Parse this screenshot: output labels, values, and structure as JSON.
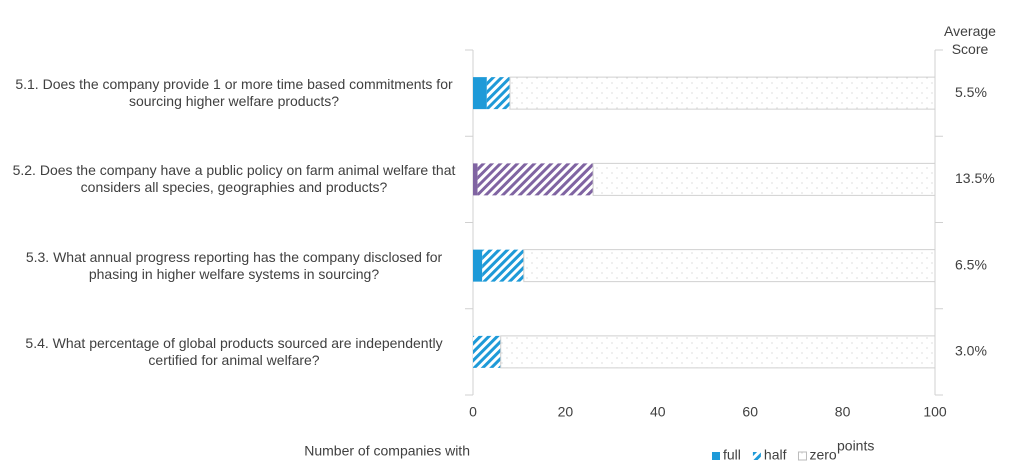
{
  "chart_data": {
    "type": "stacked-barh",
    "categories": [
      "5.1. Does the company provide  1 or more time based commitments for sourcing higher welfare products?",
      "5.2. Does the company have a public policy on farm animal welfare that considers all species, geographies and products?",
      "5.3. What annual progress reporting has the company disclosed for phasing in higher welfare systems in sourcing?",
      "5.4. What percentage of global products sourced are independently certified for animal welfare?"
    ],
    "series": [
      {
        "name": "full",
        "color": "#1e9ad8",
        "values": [
          3,
          1,
          2,
          0
        ]
      },
      {
        "name": "half",
        "color": "#1e9ad8",
        "values": [
          5,
          25,
          9,
          6
        ]
      },
      {
        "name": "zero",
        "color": "#c8c8c8",
        "values": [
          92,
          74,
          89,
          94
        ]
      }
    ],
    "highlight_category": 1,
    "highlight_color": "#8064a2",
    "xlim": [
      0,
      100
    ],
    "xticks": [
      0,
      20,
      40,
      60,
      80,
      100
    ],
    "xlabel": "Number of companies with",
    "xlabel_end": "points",
    "average_score": {
      "title": "Average Score",
      "values": [
        5.5,
        13.5,
        6.5,
        3.0
      ],
      "value_labels": [
        "5.5%",
        "13.5%",
        "6.5%",
        "3.0%"
      ]
    }
  }
}
